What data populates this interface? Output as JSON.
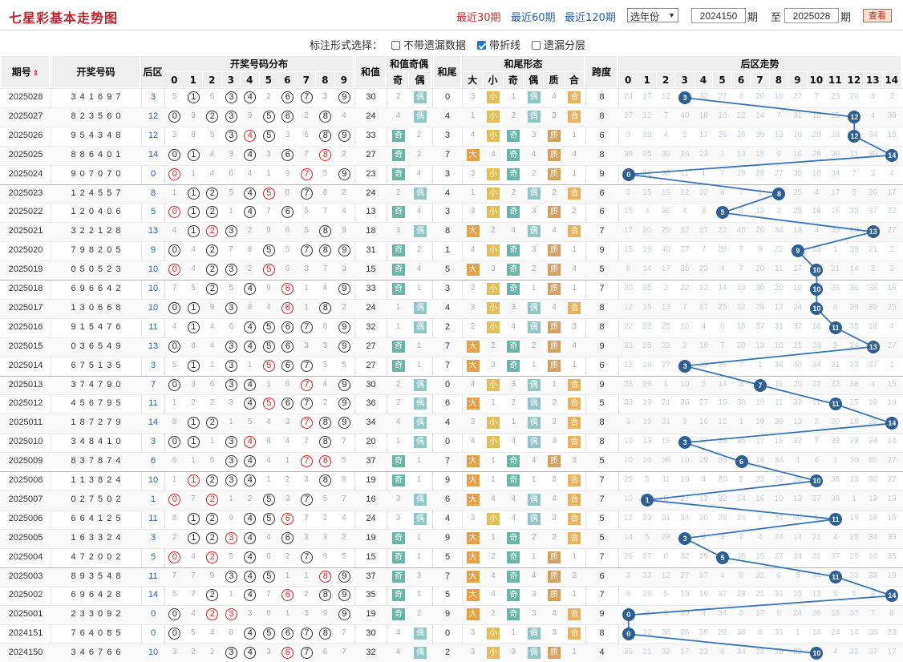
{
  "header": {
    "title": "七星彩基本走势图",
    "periods": [
      "最近30期",
      "最近60期",
      "最近120期"
    ],
    "year_select": "选年份",
    "from_value": "2024150",
    "from_suffix": "期",
    "to_label": "至",
    "to_value": "2025028",
    "to_suffix": "期",
    "query_button": "查看"
  },
  "options": {
    "label": "标注形式选择：",
    "items": [
      {
        "label": "不带遗漏数据",
        "checked": false
      },
      {
        "label": "带折线",
        "checked": true
      },
      {
        "label": "遗漏分层",
        "checked": false
      }
    ]
  },
  "columns": {
    "issue": "期号",
    "draw": "开奖号码",
    "back": "后区",
    "dist": "开奖号码分布",
    "sum": "和值",
    "sum_parity": "和值奇偶",
    "odd": "奇",
    "even": "偶",
    "tail": "和尾",
    "tail_form": "和尾形态",
    "big": "大",
    "small": "小",
    "prime": "质",
    "comp": "合",
    "span": "跨度",
    "back_trend": "后区走势",
    "digits": [
      "0",
      "1",
      "2",
      "3",
      "4",
      "5",
      "6",
      "7",
      "8",
      "9"
    ],
    "back_digits": [
      "0",
      "1",
      "2",
      "3",
      "4",
      "5",
      "6",
      "7",
      "8",
      "9",
      "10",
      "11",
      "12",
      "13",
      "14"
    ]
  },
  "rows": [
    {
      "issue": "2025028",
      "draw": "3 4 1 6 9 7",
      "back": "3",
      "sum": "30",
      "tail": "0",
      "span": "8"
    },
    {
      "issue": "2025027",
      "draw": "8 2 3 5 6 0",
      "back": "12",
      "sum": "24",
      "tail": "4",
      "span": "8"
    },
    {
      "issue": "2025026",
      "draw": "9 5 4 3 4 8",
      "back": "12",
      "sum": "33",
      "tail": "3",
      "span": "6"
    },
    {
      "issue": "2025025",
      "draw": "8 8 6 4 0 1",
      "back": "14",
      "sum": "27",
      "tail": "7",
      "span": "8"
    },
    {
      "issue": "2025024",
      "draw": "9 0 7 0 7 0",
      "back": "0",
      "sum": "23",
      "tail": "3",
      "span": "9"
    },
    {
      "issue": "2025023",
      "draw": "1 2 4 5 5 7",
      "back": "8",
      "sum": "24",
      "tail": "4",
      "span": "6"
    },
    {
      "issue": "2025022",
      "draw": "1 2 0 4 0 6",
      "back": "5",
      "sum": "13",
      "tail": "3",
      "span": "6"
    },
    {
      "issue": "2025021",
      "draw": "3 2 2 1 2 8",
      "back": "13",
      "sum": "18",
      "tail": "8",
      "span": "7"
    },
    {
      "issue": "2025020",
      "draw": "7 9 8 2 0 5",
      "back": "9",
      "sum": "31",
      "tail": "1",
      "span": "9"
    },
    {
      "issue": "2025019",
      "draw": "0 5 0 5 2 3",
      "back": "10",
      "sum": "15",
      "tail": "5",
      "span": "5"
    },
    {
      "issue": "2025018",
      "draw": "6 9 6 6 4 2",
      "back": "10",
      "sum": "33",
      "tail": "3",
      "span": "7"
    },
    {
      "issue": "2025017",
      "draw": "1 3 0 6 6 8",
      "back": "10",
      "sum": "24",
      "tail": "4",
      "span": "8"
    },
    {
      "issue": "2025016",
      "draw": "9 1 5 4 7 6",
      "back": "11",
      "sum": "32",
      "tail": "2",
      "span": "8"
    },
    {
      "issue": "2025015",
      "draw": "0 3 6 5 4 9",
      "back": "13",
      "sum": "27",
      "tail": "7",
      "span": "9"
    },
    {
      "issue": "2025014",
      "draw": "6 7 5 1 3 5",
      "back": "3",
      "sum": "27",
      "tail": "7",
      "span": "6"
    },
    {
      "issue": "2025013",
      "draw": "3 7 4 7 9 0",
      "back": "7",
      "sum": "30",
      "tail": "0",
      "span": "9"
    },
    {
      "issue": "2025012",
      "draw": "4 5 6 7 9 5",
      "back": "11",
      "sum": "36",
      "tail": "6",
      "span": "5"
    },
    {
      "issue": "2025011",
      "draw": "1 8 7 2 7 9",
      "back": "14",
      "sum": "34",
      "tail": "4",
      "span": "8"
    },
    {
      "issue": "2025010",
      "draw": "3 4 8 4 1 0",
      "back": "3",
      "sum": "20",
      "tail": "0",
      "span": "8"
    },
    {
      "issue": "2025009",
      "draw": "8 3 7 8 7 4",
      "back": "6",
      "sum": "37",
      "tail": "7",
      "span": "5"
    },
    {
      "issue": "2025008",
      "draw": "1 1 3 8 2 4",
      "back": "10",
      "sum": "19",
      "tail": "9",
      "span": "7"
    },
    {
      "issue": "2025007",
      "draw": "0 2 7 5 0 2",
      "back": "1",
      "sum": "16",
      "tail": "6",
      "span": "7"
    },
    {
      "issue": "2025006",
      "draw": "6 6 4 1 2 5",
      "back": "11",
      "sum": "24",
      "tail": "4",
      "span": "5"
    },
    {
      "issue": "2025005",
      "draw": "1 6 3 3 2 4",
      "back": "3",
      "sum": "19",
      "tail": "9",
      "span": "5"
    },
    {
      "issue": "2025004",
      "draw": "4 7 2 0 0 2",
      "back": "5",
      "sum": "15",
      "tail": "5",
      "span": "7"
    },
    {
      "issue": "2025003",
      "draw": "8 9 3 5 4 8",
      "back": "11",
      "sum": "37",
      "tail": "7",
      "span": "6"
    },
    {
      "issue": "2025002",
      "draw": "6 9 6 4 2 8",
      "back": "14",
      "sum": "35",
      "tail": "5",
      "span": "7"
    },
    {
      "issue": "2025001",
      "draw": "2 3 3 0 9 2",
      "back": "0",
      "sum": "19",
      "tail": "9",
      "span": "9"
    },
    {
      "issue": "2024151",
      "draw": "7 6 4 0 8 5",
      "back": "0",
      "sum": "30",
      "tail": "0",
      "span": "8"
    },
    {
      "issue": "2024150",
      "draw": "3 4 6 7 6 6",
      "back": "10",
      "sum": "32",
      "tail": "2",
      "span": "4"
    }
  ],
  "colors": {
    "accent_red": "#e02020",
    "link_blue": "#2a64b0",
    "trend_blue": "#2c5f96",
    "odd": "#67b6a8",
    "big": "#e7a043"
  }
}
